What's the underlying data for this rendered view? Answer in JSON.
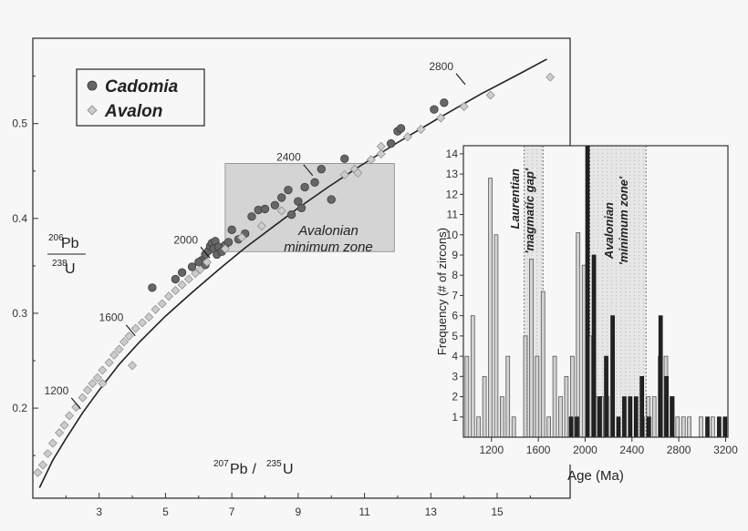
{
  "chart_data": [
    {
      "type": "scatter",
      "title": "",
      "xlabel": "207Pb / 235U",
      "xlabel_parts": {
        "iso1": "207",
        "el1": "Pb",
        "sep": " / ",
        "iso2": "235",
        "el2": "U"
      },
      "ylabel_parts": {
        "num_iso": "206",
        "num_el": "Pb",
        "den_iso": "238",
        "den_el": "U"
      },
      "xlim": [
        1.0,
        17.2
      ],
      "ylim": [
        0.105,
        0.59
      ],
      "xticks": [
        3,
        5,
        7,
        9,
        11,
        13,
        15
      ],
      "yticks": [
        0.2,
        0.3,
        0.4,
        0.5
      ],
      "ytick_labels": [
        "0.2",
        "0.3",
        "0.4",
        "0.5"
      ],
      "legend": {
        "position": "top-left",
        "entries": [
          "Cadomia",
          "Avalon"
        ]
      },
      "concordia": {
        "age_labels": [
          "1200",
          "1600",
          "2000",
          "2400",
          "2800"
        ],
        "label_points": [
          {
            "label": "1200",
            "x": 2.3,
            "y": 0.205
          },
          {
            "label": "1600",
            "x": 3.95,
            "y": 0.282
          },
          {
            "label": "2000",
            "x": 6.2,
            "y": 0.364
          },
          {
            "label": "2400",
            "x": 9.3,
            "y": 0.451
          },
          {
            "label": "2800",
            "x": 13.9,
            "y": 0.547
          }
        ],
        "curve_x": [
          1.2,
          1.6,
          2.0,
          2.5,
          3.0,
          3.6,
          4.2,
          5.0,
          5.8,
          6.6,
          7.4,
          8.2,
          9.0,
          9.9,
          10.9,
          12.0,
          13.2,
          14.5,
          15.7,
          16.5
        ],
        "curve_y": [
          0.116,
          0.145,
          0.168,
          0.195,
          0.219,
          0.246,
          0.269,
          0.297,
          0.322,
          0.346,
          0.369,
          0.39,
          0.411,
          0.433,
          0.456,
          0.48,
          0.505,
          0.531,
          0.553,
          0.568
        ]
      },
      "annotation": {
        "line1": "Avalonian",
        "line2": "minimum zone"
      },
      "minimum_zone": {
        "x": [
          6.8,
          11.9
        ],
        "y": [
          0.365,
          0.458
        ]
      },
      "series": [
        {
          "name": "Cadomia",
          "color": "#666666",
          "marker": "circle",
          "x": [
            6.1,
            6.2,
            6.3,
            6.35,
            6.4,
            6.45,
            6.5,
            6.55,
            6.6,
            6.7,
            6.8,
            6.9,
            7.0,
            7.2,
            7.4,
            7.6,
            7.8,
            8.0,
            8.3,
            8.5,
            8.7,
            8.8,
            9.0,
            9.1,
            9.2,
            9.5,
            9.7,
            10.0,
            10.4,
            11.8,
            12.0,
            12.1,
            13.1,
            13.4,
            5.3,
            5.5,
            5.8,
            6.0,
            6.2,
            4.6
          ],
          "y": [
            0.356,
            0.362,
            0.366,
            0.371,
            0.374,
            0.368,
            0.376,
            0.362,
            0.37,
            0.365,
            0.372,
            0.375,
            0.388,
            0.378,
            0.384,
            0.402,
            0.409,
            0.41,
            0.414,
            0.422,
            0.43,
            0.404,
            0.418,
            0.411,
            0.433,
            0.438,
            0.452,
            0.42,
            0.463,
            0.479,
            0.492,
            0.495,
            0.515,
            0.522,
            0.336,
            0.343,
            0.349,
            0.354,
            0.351,
            0.327
          ]
        },
        {
          "name": "Avalon",
          "color": "#cccccc",
          "marker": "diamond",
          "x": [
            1.15,
            1.3,
            1.45,
            1.6,
            1.8,
            1.95,
            2.1,
            2.3,
            2.5,
            2.65,
            2.8,
            2.95,
            3.1,
            3.3,
            3.45,
            3.6,
            3.75,
            3.9,
            4.1,
            4.3,
            4.5,
            4.7,
            4.9,
            5.1,
            5.3,
            5.5,
            5.7,
            5.9,
            6.05,
            6.25,
            6.8,
            7.3,
            7.9,
            8.5,
            10.4,
            10.7,
            11.2,
            11.5,
            12.3,
            12.7,
            13.3,
            14.0,
            14.8,
            16.6,
            3.1,
            4.0,
            10.8,
            11.5
          ],
          "y": [
            0.132,
            0.14,
            0.152,
            0.163,
            0.174,
            0.182,
            0.192,
            0.201,
            0.211,
            0.219,
            0.226,
            0.232,
            0.24,
            0.248,
            0.256,
            0.262,
            0.27,
            0.276,
            0.284,
            0.29,
            0.296,
            0.304,
            0.31,
            0.318,
            0.324,
            0.33,
            0.336,
            0.342,
            0.346,
            0.354,
            0.368,
            0.38,
            0.392,
            0.408,
            0.446,
            0.452,
            0.462,
            0.468,
            0.486,
            0.494,
            0.506,
            0.518,
            0.53,
            0.549,
            0.226,
            0.245,
            0.448,
            0.476
          ]
        }
      ]
    },
    {
      "type": "bar",
      "title": "",
      "xlabel": "Age (Ma)",
      "ylabel": "Frequency (# of zircons)",
      "xlim": [
        960,
        3220
      ],
      "ylim": [
        0,
        14.4
      ],
      "xticks": [
        1200,
        1600,
        2000,
        2400,
        2800,
        3200
      ],
      "yticks": [
        1,
        2,
        3,
        4,
        5,
        6,
        7,
        8,
        9,
        10,
        11,
        12,
        13,
        14
      ],
      "annotations": [
        {
          "line1": "Laurentian",
          "line2": "'magmatic gap'"
        },
        {
          "line1": "Avalonian",
          "line2": "'minimum zone'"
        }
      ],
      "shaded_zones": [
        {
          "x": [
            1480,
            1640
          ]
        },
        {
          "x": [
            2040,
            2520
          ]
        }
      ],
      "series": [
        {
          "name": "",
          "color": "#d2d2d2",
          "x": [
            990,
            1040,
            1090,
            1140,
            1190,
            1240,
            1290,
            1340,
            1390,
            1490,
            1540,
            1590,
            1640,
            1690,
            1740,
            1790,
            1840,
            1890,
            1940,
            1990,
            2040,
            2090,
            2140,
            2190,
            2490,
            2540,
            2590,
            2640,
            2690,
            2740,
            2790,
            2840,
            2890,
            2990,
            3090
          ],
          "values": [
            4,
            6,
            1,
            3,
            12.8,
            10,
            2,
            4,
            1,
            5,
            8.8,
            4,
            7.2,
            1,
            4,
            2,
            3,
            4,
            10.1,
            8.5,
            5,
            2,
            2,
            2,
            1,
            2,
            2,
            4,
            4,
            2,
            1,
            1,
            1,
            1,
            1
          ]
        },
        {
          "name": "",
          "color": "#222222",
          "x": [
            1880,
            1930,
            2020,
            2075,
            2125,
            2180,
            2235,
            2285,
            2335,
            2385,
            2435,
            2485,
            2545,
            2645,
            2695,
            2745,
            3045,
            3145,
            3195
          ],
          "values": [
            1,
            1,
            14.4,
            9,
            2,
            4,
            6,
            1,
            2,
            2,
            2,
            3,
            1,
            6,
            3,
            2,
            1,
            1,
            1
          ]
        }
      ]
    }
  ]
}
